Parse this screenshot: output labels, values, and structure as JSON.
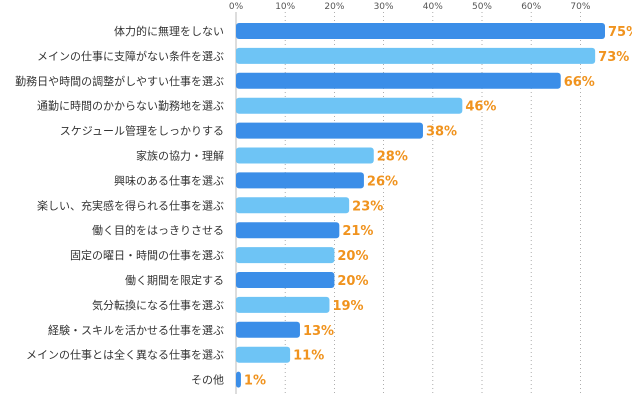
{
  "chart_data": {
    "type": "bar",
    "orientation": "horizontal",
    "title": "",
    "xlabel": "",
    "ylabel": "",
    "xlim": [
      0,
      80
    ],
    "tick_values": [
      0,
      10,
      20,
      30,
      40,
      50,
      60,
      70
    ],
    "tick_labels": [
      "0%",
      "10%",
      "20%",
      "30%",
      "40%",
      "50%",
      "60%",
      "70%"
    ],
    "grid": true,
    "categories": [
      "体力的に無理をしない",
      "メインの仕事に支障がない条件を選ぶ",
      "勤務日や時間の調整がしやすい仕事を選ぶ",
      "通勤に時間のかからない勤務地を選ぶ",
      "スケジュール管理をしっかりする",
      "家族の協力・理解",
      "興味のある仕事を選ぶ",
      "楽しい、充実感を得られる仕事を選ぶ",
      "働く目的をはっきりさせる",
      "固定の曜日・時間の仕事を選ぶ",
      "働く期間を限定する",
      "気分転換になる仕事を選ぶ",
      "経験・スキルを活かせる仕事を選ぶ",
      "メインの仕事とは全く異なる仕事を選ぶ",
      "その他"
    ],
    "values": [
      75,
      73,
      66,
      46,
      38,
      28,
      26,
      23,
      21,
      20,
      20,
      19,
      13,
      11,
      1
    ],
    "value_labels": [
      "75%",
      "73%",
      "66%",
      "46%",
      "38%",
      "28%",
      "26%",
      "23%",
      "21%",
      "20%",
      "20%",
      "19%",
      "13%",
      "11%",
      "1%"
    ],
    "colors": {
      "bar_dark": "#3b8ee8",
      "bar_light": "#6ec4f5",
      "value_label": "#f0931e",
      "grid": "#9a9a9a",
      "axis": "#bbbbbb"
    }
  }
}
